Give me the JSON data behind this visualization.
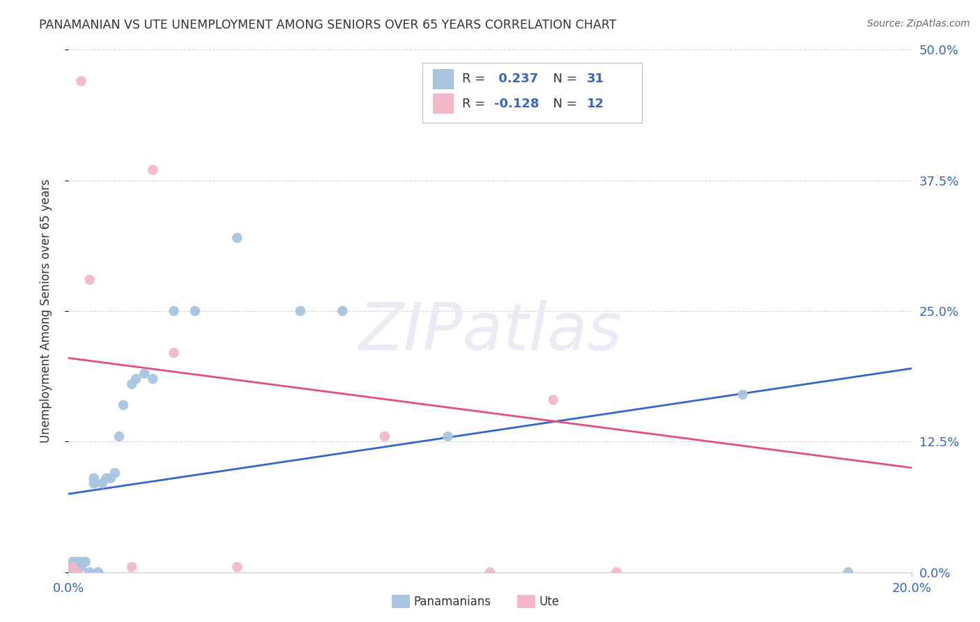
{
  "title": "PANAMANIAN VS UTE UNEMPLOYMENT AMONG SENIORS OVER 65 YEARS CORRELATION CHART",
  "source": "Source: ZipAtlas.com",
  "ylabel": "Unemployment Among Seniors over 65 years",
  "xlim": [
    0.0,
    0.2
  ],
  "ylim": [
    0.0,
    0.5
  ],
  "xtick_values": [
    0.0,
    0.2
  ],
  "xtick_labels": [
    "0.0%",
    "20.0%"
  ],
  "ytick_values": [
    0.0,
    0.125,
    0.25,
    0.375,
    0.5
  ],
  "ytick_labels": [
    "0.0%",
    "12.5%",
    "25.0%",
    "37.5%",
    "50.0%"
  ],
  "panamanian_color": "#a8c4e0",
  "ute_color": "#f4b8c8",
  "trendline_pan_color": "#3366cc",
  "trendline_ute_color": "#e05080",
  "legend_R_pan": "R =  0.237",
  "legend_N_pan": "N = 31",
  "legend_R_ute": "R = -0.128",
  "legend_N_ute": "N = 12",
  "pan_trendline_y0": 0.075,
  "pan_trendline_y1": 0.195,
  "ute_trendline_y0": 0.205,
  "ute_trendline_y1": 0.1,
  "panamanian_x": [
    0.001,
    0.001,
    0.001,
    0.002,
    0.002,
    0.002,
    0.003,
    0.003,
    0.004,
    0.005,
    0.006,
    0.006,
    0.007,
    0.008,
    0.009,
    0.01,
    0.011,
    0.012,
    0.013,
    0.015,
    0.016,
    0.018,
    0.02,
    0.025,
    0.03,
    0.04,
    0.055,
    0.065,
    0.09,
    0.16,
    0.185
  ],
  "panamanian_y": [
    0.005,
    0.01,
    0.0,
    0.005,
    0.01,
    0.0,
    0.01,
    0.005,
    0.01,
    0.0,
    0.085,
    0.09,
    0.0,
    0.085,
    0.09,
    0.09,
    0.095,
    0.13,
    0.16,
    0.18,
    0.185,
    0.19,
    0.185,
    0.25,
    0.25,
    0.32,
    0.25,
    0.25,
    0.13,
    0.17,
    0.0
  ],
  "ute_x": [
    0.001,
    0.002,
    0.003,
    0.005,
    0.015,
    0.02,
    0.025,
    0.04,
    0.075,
    0.1,
    0.115,
    0.13
  ],
  "ute_y": [
    0.005,
    0.0,
    0.47,
    0.28,
    0.005,
    0.385,
    0.21,
    0.005,
    0.13,
    0.0,
    0.165,
    0.0
  ],
  "watermark_text": "ZIPatlas",
  "background_color": "#ffffff",
  "grid_color": "#d8d8d8"
}
